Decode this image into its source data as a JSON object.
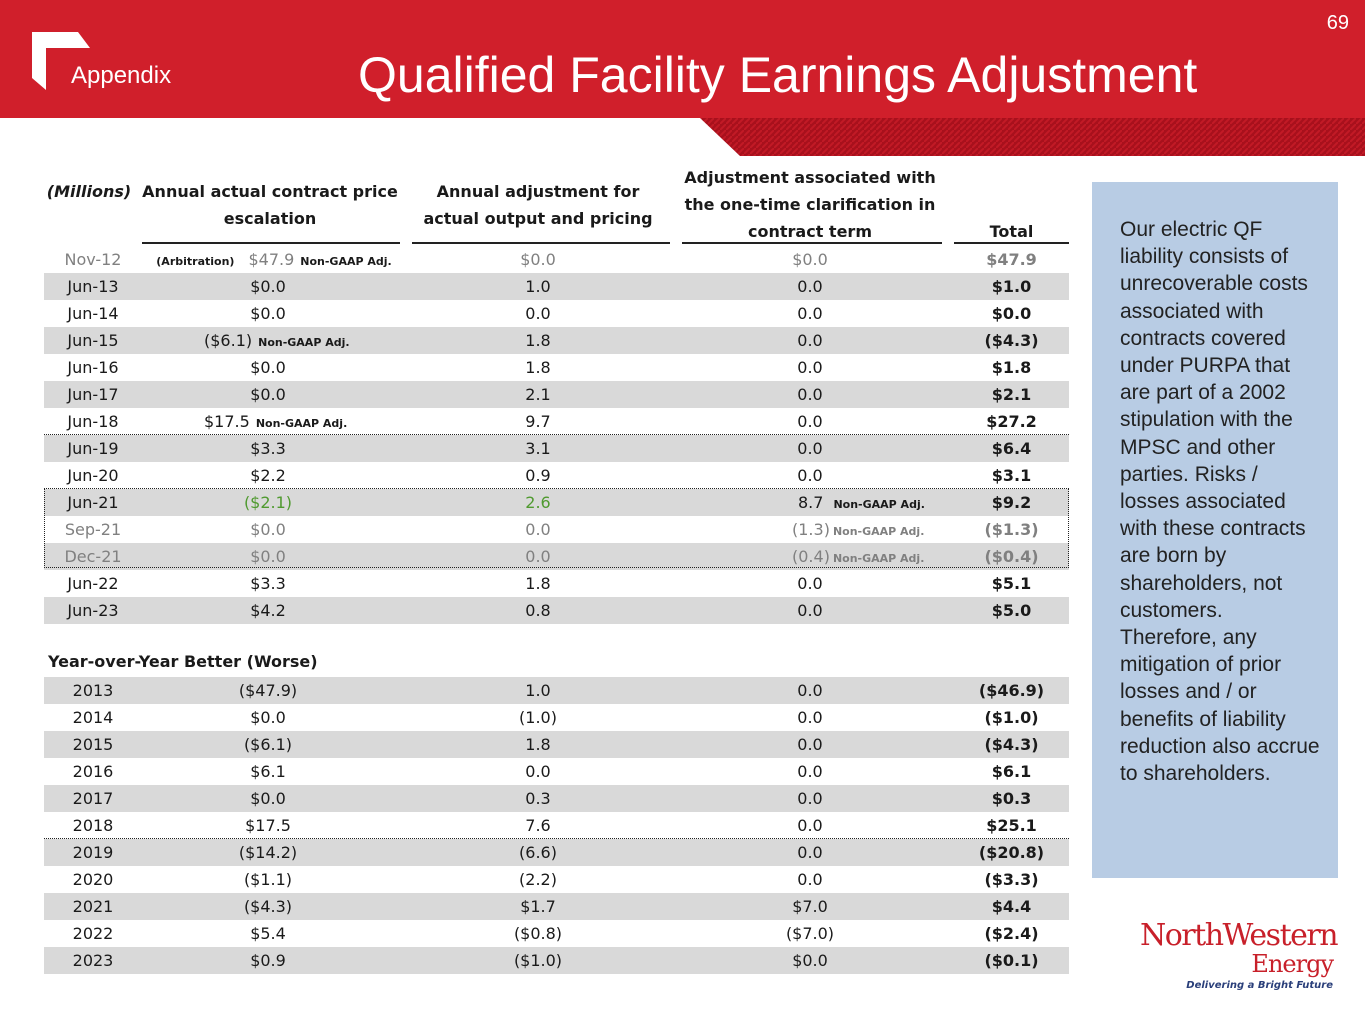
{
  "header": {
    "page_number": "69",
    "section": "Appendix",
    "title": "Qualified Facility Earnings Adjustment"
  },
  "table": {
    "headers": {
      "units": "(Millions)",
      "col1_line1": "Annual actual contract price",
      "col1_line2": "escalation",
      "col2_line1": "Annual adjustment for",
      "col2_line2": "actual output and pricing",
      "col3_line1": "Adjustment associated with",
      "col3_line2": "the one-time clarification in",
      "col3_line3": "contract term",
      "total": "Total"
    },
    "arbitration_label": "(Arbitration)",
    "non_gaap_label": "Non-GAAP Adj.",
    "rows": [
      {
        "period": "Nov-12",
        "price": "$47.9",
        "output": "$0.0",
        "clarification": "$0.0",
        "total": "$47.9"
      },
      {
        "period": "Jun-13",
        "price": "$0.0",
        "output": "1.0",
        "clarification": "0.0",
        "total": "$1.0"
      },
      {
        "period": "Jun-14",
        "price": "$0.0",
        "output": "0.0",
        "clarification": "0.0",
        "total": "$0.0"
      },
      {
        "period": "Jun-15",
        "price": "($6.1)",
        "output": "1.8",
        "clarification": "0.0",
        "total": "($4.3)"
      },
      {
        "period": "Jun-16",
        "price": "$0.0",
        "output": "1.8",
        "clarification": "0.0",
        "total": "$1.8"
      },
      {
        "period": "Jun-17",
        "price": "$0.0",
        "output": "2.1",
        "clarification": "0.0",
        "total": "$2.1"
      },
      {
        "period": "Jun-18",
        "price": "$17.5",
        "output": "9.7",
        "clarification": "0.0",
        "total": "$27.2"
      },
      {
        "period": "Jun-19",
        "price": "$3.3",
        "output": "3.1",
        "clarification": "0.0",
        "total": "$6.4"
      },
      {
        "period": "Jun-20",
        "price": "$2.2",
        "output": "0.9",
        "clarification": "0.0",
        "total": "$3.1"
      },
      {
        "period": "Jun-21",
        "price": "($2.1)",
        "output": "2.6",
        "clarification": "8.7",
        "total": "$9.2"
      },
      {
        "period": "Sep-21",
        "price": "$0.0",
        "output": "0.0",
        "clarification": "(1.3)",
        "total": "($1.3)"
      },
      {
        "period": "Dec-21",
        "price": "$0.0",
        "output": "0.0",
        "clarification": "(0.4)",
        "total": "($0.4)"
      },
      {
        "period": "Jun-22",
        "price": "$3.3",
        "output": "1.8",
        "clarification": "0.0",
        "total": "$5.1"
      },
      {
        "period": "Jun-23",
        "price": "$4.2",
        "output": "0.8",
        "clarification": "0.0",
        "total": "$5.0"
      }
    ],
    "yoy_title": "Year-over-Year Better (Worse)",
    "yoy_rows": [
      {
        "year": "2013",
        "price": "($47.9)",
        "output": "1.0",
        "clarification": "0.0",
        "total": "($46.9)"
      },
      {
        "year": "2014",
        "price": "$0.0",
        "output": "(1.0)",
        "clarification": "0.0",
        "total": "($1.0)"
      },
      {
        "year": "2015",
        "price": "($6.1)",
        "output": "1.8",
        "clarification": "0.0",
        "total": "($4.3)"
      },
      {
        "year": "2016",
        "price": "$6.1",
        "output": "0.0",
        "clarification": "0.0",
        "total": "$6.1"
      },
      {
        "year": "2017",
        "price": "$0.0",
        "output": "0.3",
        "clarification": "0.0",
        "total": "$0.3"
      },
      {
        "year": "2018",
        "price": "$17.5",
        "output": "7.6",
        "clarification": "0.0",
        "total": "$25.1"
      },
      {
        "year": "2019",
        "price": "($14.2)",
        "output": "(6.6)",
        "clarification": "0.0",
        "total": "($20.8)"
      },
      {
        "year": "2020",
        "price": "($1.1)",
        "output": "(2.2)",
        "clarification": "0.0",
        "total": "($3.3)"
      },
      {
        "year": "2021",
        "price": "($4.3)",
        "output": "$1.7",
        "clarification": "$7.0",
        "total": "$4.4"
      },
      {
        "year": "2022",
        "price": "$5.4",
        "output": "($0.8)",
        "clarification": "($7.0)",
        "total": "($2.4)"
      },
      {
        "year": "2023",
        "price": "$0.9",
        "output": "($1.0)",
        "clarification": "$0.0",
        "total": "($0.1)"
      }
    ]
  },
  "sidebar": {
    "text": "Our electric QF liability consists of unrecoverable costs associated with contracts covered under PURPA that are part of a 2002 stipulation with the MPSC and other parties. Risks / losses associated with these contracts are born by shareholders, not customers. Therefore, any mitigation of prior losses and / or benefits of  liability reduction also accrue to shareholders."
  },
  "logo": {
    "name": "NorthWestern",
    "sub": "Energy",
    "tagline": "Delivering a Bright Future"
  },
  "colors": {
    "brand_red": "#d01f2b",
    "sidebar_blue": "#b8cce4",
    "row_shade": "#d9d9d9",
    "positive_green": "#4f9a2f"
  }
}
